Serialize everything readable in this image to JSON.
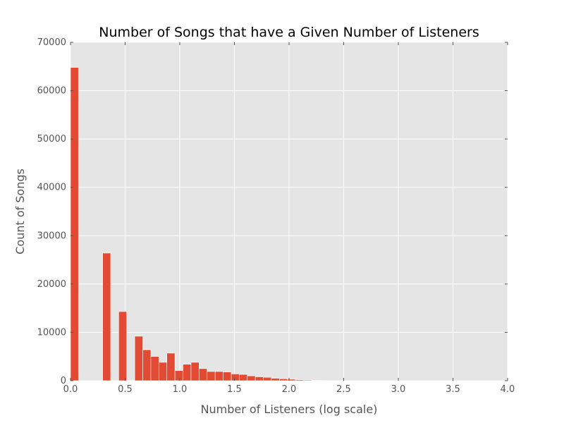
{
  "chart_data": {
    "type": "bar",
    "title": "Number of Songs that have a Given Number of Listeners",
    "xlabel": "Number of Listeners (log scale)",
    "ylabel": "Count of Songs",
    "xlim": [
      0,
      4
    ],
    "ylim": [
      0,
      70000
    ],
    "xticks": [
      "0.0",
      "0.5",
      "1.0",
      "1.5",
      "2.0",
      "2.5",
      "3.0",
      "3.5",
      "4.0"
    ],
    "yticks": [
      "0",
      "10000",
      "20000",
      "30000",
      "40000",
      "50000",
      "60000",
      "70000"
    ],
    "grid": true,
    "bar_color": "#E24A33",
    "background_color": "#E5E5E5",
    "bin_width": 0.0735,
    "bins": [
      {
        "x": 0.0,
        "value": 64800
      },
      {
        "x": 0.294,
        "value": 26400
      },
      {
        "x": 0.441,
        "value": 14300
      },
      {
        "x": 0.588,
        "value": 9200
      },
      {
        "x": 0.662,
        "value": 6400
      },
      {
        "x": 0.735,
        "value": 5000
      },
      {
        "x": 0.809,
        "value": 3800
      },
      {
        "x": 0.882,
        "value": 5700
      },
      {
        "x": 0.956,
        "value": 2100
      },
      {
        "x": 1.029,
        "value": 3400
      },
      {
        "x": 1.103,
        "value": 3800
      },
      {
        "x": 1.176,
        "value": 2500
      },
      {
        "x": 1.25,
        "value": 1900
      },
      {
        "x": 1.324,
        "value": 1900
      },
      {
        "x": 1.397,
        "value": 1800
      },
      {
        "x": 1.471,
        "value": 1400
      },
      {
        "x": 1.544,
        "value": 1300
      },
      {
        "x": 1.618,
        "value": 1000
      },
      {
        "x": 1.691,
        "value": 800
      },
      {
        "x": 1.765,
        "value": 700
      },
      {
        "x": 1.838,
        "value": 500
      },
      {
        "x": 1.912,
        "value": 400
      },
      {
        "x": 1.985,
        "value": 300
      },
      {
        "x": 2.059,
        "value": 200
      },
      {
        "x": 2.132,
        "value": 150
      },
      {
        "x": 2.206,
        "value": 80
      },
      {
        "x": 2.279,
        "value": 40
      },
      {
        "x": 2.353,
        "value": 20
      }
    ]
  }
}
